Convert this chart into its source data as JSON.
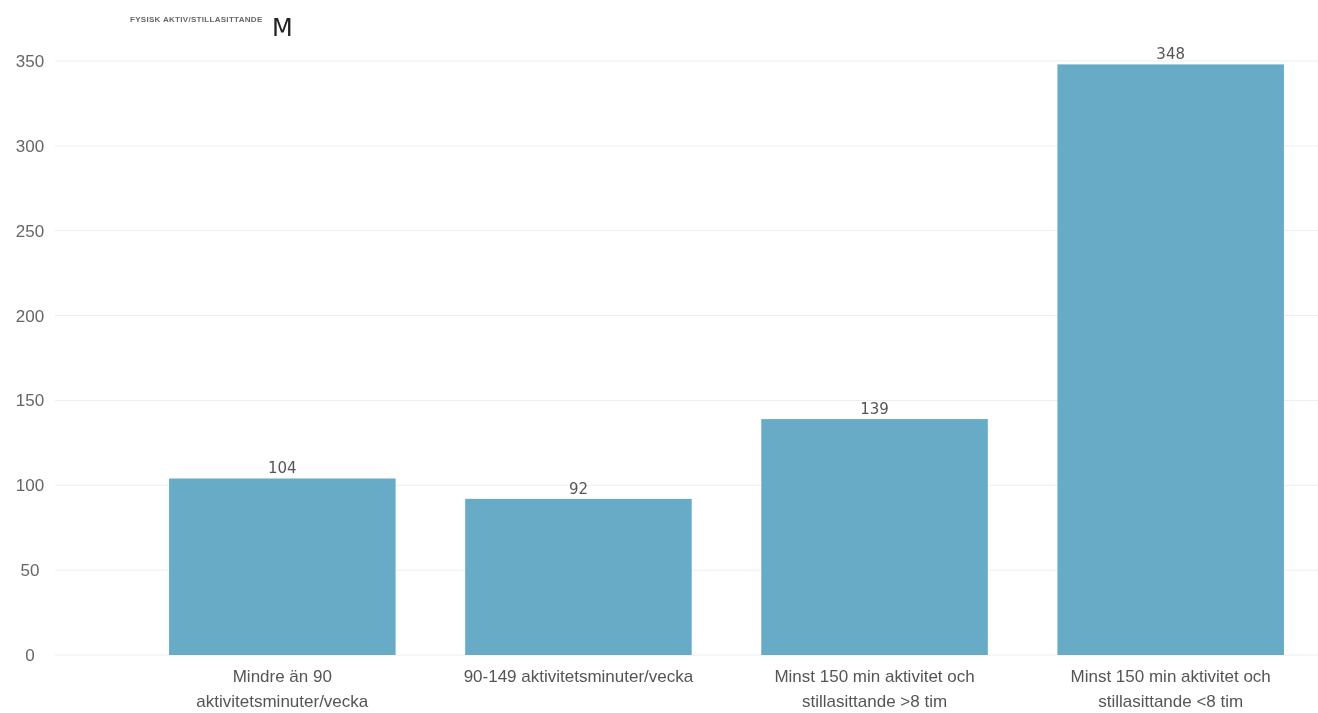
{
  "chart_data": {
    "type": "bar",
    "title": "FYSISK AKTIV/STILLASITTANDE",
    "subtitle": "M",
    "categories": [
      "Mindre än 90 aktivitetsminuter/vecka",
      "90-149 aktivitetsminuter/vecka",
      "Minst 150 min aktivitet och stillasittande >8 tim",
      "Minst 150 min aktivitet och stillasittande <8 tim"
    ],
    "values": [
      104,
      92,
      139,
      348
    ],
    "color": "#67abc7",
    "ylim": [
      0,
      350
    ],
    "yticks": [
      0,
      50,
      100,
      150,
      200,
      250,
      300,
      350
    ],
    "grid": "y",
    "data_labels": true
  }
}
